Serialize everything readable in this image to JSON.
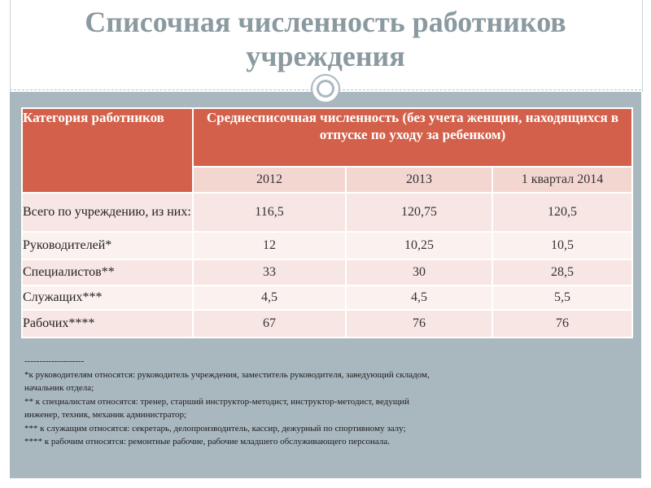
{
  "title": "Списочная численность работников учреждения",
  "table": {
    "header_category": "Категория работников",
    "header_average": "Среднесписочная численность (без учета женщин, находящихся в отпуске по уходу за ребенком)",
    "years": [
      "2012",
      "2013",
      "1 квартал 2014"
    ],
    "rows": [
      {
        "label": "Всего по учреждению, из них:",
        "values": [
          "116,5",
          "120,75",
          "120,5"
        ]
      },
      {
        "label": "Руководителей*",
        "values": [
          "12",
          "10,25",
          "10,5"
        ]
      },
      {
        "label": "Специалистов**",
        "values": [
          "33",
          "30",
          "28,5"
        ]
      },
      {
        "label": "Служащих***",
        "values": [
          "4,5",
          "4,5",
          "5,5"
        ]
      },
      {
        "label": "Рабочих****",
        "values": [
          "67",
          "76",
          "76"
        ]
      }
    ]
  },
  "notes": {
    "separator": "--------------------",
    "lines": [
      "*к руководителям относятся: руководитель учреждения, заместитель руководителя, заведующий складом, начальник отдела;",
      "** к специалистам относятся: тренер, старший инструктор-методист, инструктор-методист, ведущий инженер, техник, механик администратор;",
      "*** к служащим относятся: секретарь, делопроизводитель, кассир, дежурный по спортивному залу;",
      "**** к рабочим относятся: ремонтные рабочие, рабочие младшего обслуживающего персонала."
    ]
  },
  "colors": {
    "header_bg": "#d3604a",
    "panel_bg": "#a9b8bf",
    "title_color": "#8b9aa0"
  }
}
